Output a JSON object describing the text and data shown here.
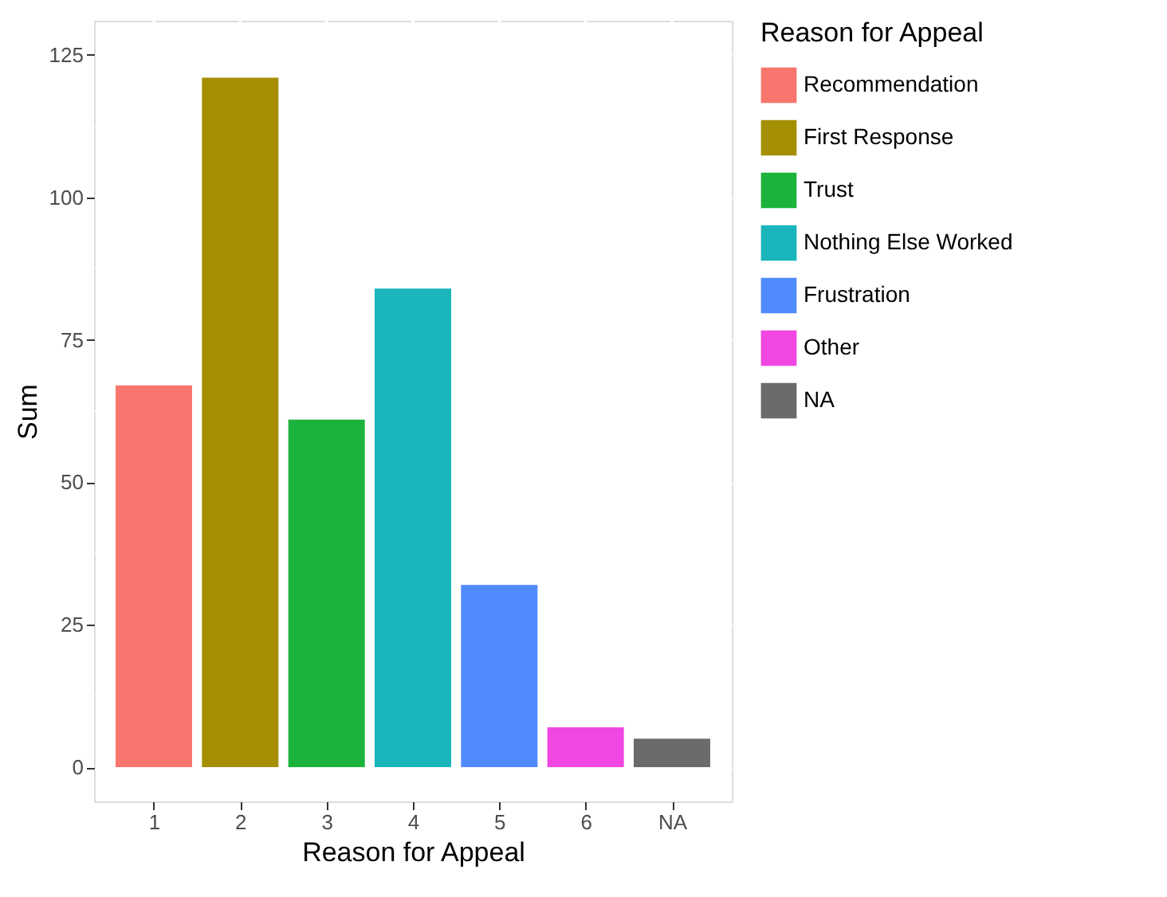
{
  "chart_data": {
    "type": "bar",
    "xlabel": "Reason for Appeal",
    "ylabel": "Sum",
    "legend_title": "Reason for Appeal",
    "categories": [
      "1",
      "2",
      "3",
      "4",
      "5",
      "6",
      "NA"
    ],
    "series": [
      {
        "name": "Recommendation",
        "color": "#f8766d",
        "values": [
          67,
          null,
          null,
          null,
          null,
          null,
          null
        ]
      },
      {
        "name": "First Response",
        "color": "#a58f00",
        "values": [
          null,
          121,
          null,
          null,
          null,
          null,
          null
        ]
      },
      {
        "name": "Trust",
        "color": "#1bb33b",
        "values": [
          null,
          null,
          61,
          null,
          null,
          null,
          null
        ]
      },
      {
        "name": "Nothing Else Worked",
        "color": "#19b5bb",
        "values": [
          null,
          null,
          null,
          84,
          null,
          null,
          null
        ]
      },
      {
        "name": "Frustration",
        "color": "#4f8bff",
        "values": [
          null,
          null,
          null,
          null,
          32,
          null,
          null
        ]
      },
      {
        "name": "Other",
        "color": "#f046e2",
        "values": [
          null,
          null,
          null,
          null,
          null,
          7,
          null
        ]
      },
      {
        "name": "NA",
        "color": "#6b6b6b",
        "values": [
          null,
          null,
          null,
          null,
          null,
          null,
          5
        ]
      }
    ],
    "ylim": [
      -6,
      131
    ],
    "yticks": [
      0,
      25,
      50,
      75,
      100,
      125
    ],
    "grid": true,
    "legend": "right"
  }
}
